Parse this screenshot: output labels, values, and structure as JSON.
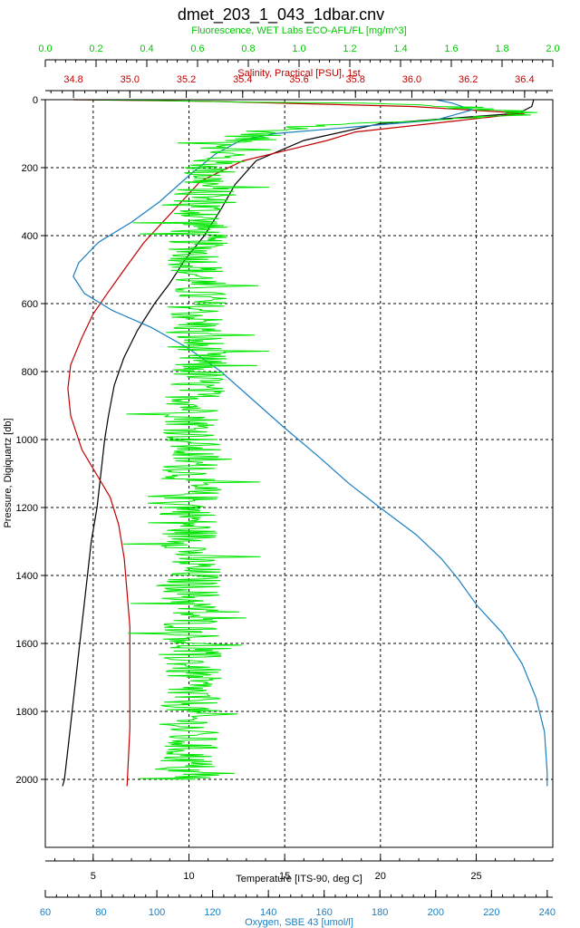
{
  "chart_data": {
    "type": "line",
    "title": "dmet_203_1_043_1dbar.cnv",
    "grid": true,
    "y_axis": {
      "label": "Pressure, Digiquartz [db]",
      "range": [
        2200,
        0
      ],
      "ticks": [
        0,
        200,
        400,
        600,
        800,
        1000,
        1200,
        1400,
        1600,
        1800,
        2000
      ]
    },
    "x_axes": [
      {
        "id": "fluorescence",
        "position": "top",
        "label": "Fluorescence, WET Labs ECO-AFL/FL [mg/m^3]",
        "color": "#00c800",
        "range": [
          0.0,
          2.0
        ],
        "ticks": [
          "0.0",
          "0.2",
          "0.4",
          "0.6",
          "0.8",
          "1.0",
          "1.2",
          "1.4",
          "1.6",
          "1.8",
          "2.0"
        ]
      },
      {
        "id": "salinity",
        "position": "top",
        "label": "Salinity, Practical [PSU], 1st",
        "color": "#c00000",
        "range": [
          34.7,
          36.5
        ],
        "ticks": [
          "34.8",
          "35.0",
          "35.2",
          "35.4",
          "35.6",
          "35.8",
          "36.0",
          "36.2",
          "36.4"
        ]
      },
      {
        "id": "temperature",
        "position": "bottom",
        "label": "Temperature [ITS-90, deg C]",
        "color": "#000000",
        "range": [
          2.5,
          29.0
        ],
        "ticks": [
          "5",
          "10",
          "15",
          "20",
          "25"
        ]
      },
      {
        "id": "oxygen",
        "position": "bottom",
        "label": "Oxygen, SBE 43 [umol/l]",
        "color": "#1a7fc0",
        "range": [
          60,
          242
        ],
        "ticks": [
          "60",
          "80",
          "100",
          "120",
          "140",
          "160",
          "180",
          "200",
          "220",
          "240"
        ]
      }
    ],
    "series": [
      {
        "name": "Temperature [ITS-90, deg C]",
        "axis": "temperature",
        "color": "#000000",
        "points": [
          [
            28.0,
            0
          ],
          [
            27.9,
            20
          ],
          [
            27.2,
            40
          ],
          [
            20.0,
            70
          ],
          [
            16.0,
            120
          ],
          [
            13.5,
            180
          ],
          [
            12.4,
            250
          ],
          [
            11.7,
            320
          ],
          [
            10.8,
            400
          ],
          [
            9.8,
            470
          ],
          [
            9.0,
            540
          ],
          [
            8.2,
            600
          ],
          [
            7.3,
            680
          ],
          [
            6.6,
            760
          ],
          [
            6.1,
            840
          ],
          [
            5.8,
            930
          ],
          [
            5.6,
            1000
          ],
          [
            5.4,
            1100
          ],
          [
            5.2,
            1200
          ],
          [
            4.9,
            1300
          ],
          [
            4.7,
            1400
          ],
          [
            4.5,
            1500
          ],
          [
            4.3,
            1600
          ],
          [
            4.1,
            1700
          ],
          [
            3.9,
            1800
          ],
          [
            3.7,
            1900
          ],
          [
            3.5,
            2000
          ],
          [
            3.4,
            2020
          ]
        ]
      },
      {
        "name": "Salinity, Practical [PSU], 1st",
        "axis": "salinity",
        "color": "#c00000",
        "points": [
          [
            34.8,
            0
          ],
          [
            35.3,
            5
          ],
          [
            36.0,
            20
          ],
          [
            36.4,
            40
          ],
          [
            35.8,
            95
          ],
          [
            35.7,
            120
          ],
          [
            35.55,
            150
          ],
          [
            35.4,
            180
          ],
          [
            35.25,
            240
          ],
          [
            35.15,
            330
          ],
          [
            35.05,
            420
          ],
          [
            34.98,
            500
          ],
          [
            34.92,
            570
          ],
          [
            34.87,
            630
          ],
          [
            34.83,
            700
          ],
          [
            34.79,
            780
          ],
          [
            34.78,
            850
          ],
          [
            34.79,
            930
          ],
          [
            34.83,
            1030
          ],
          [
            34.88,
            1100
          ],
          [
            34.93,
            1170
          ],
          [
            34.96,
            1250
          ],
          [
            34.98,
            1350
          ],
          [
            34.99,
            1450
          ],
          [
            35.0,
            1550
          ],
          [
            35.0,
            1700
          ],
          [
            35.0,
            1850
          ],
          [
            34.99,
            2020
          ]
        ]
      },
      {
        "name": "Oxygen, SBE 43 [umol/l]",
        "axis": "oxygen",
        "color": "#1a7fc0",
        "points": [
          [
            200,
            0
          ],
          [
            206,
            10
          ],
          [
            213,
            30
          ],
          [
            200,
            60
          ],
          [
            142,
            100
          ],
          [
            130,
            120
          ],
          [
            121,
            160
          ],
          [
            112,
            220
          ],
          [
            101,
            300
          ],
          [
            91,
            360
          ],
          [
            79,
            420
          ],
          [
            72,
            480
          ],
          [
            70,
            520
          ],
          [
            74,
            570
          ],
          [
            84,
            620
          ],
          [
            98,
            670
          ],
          [
            111,
            730
          ],
          [
            123,
            800
          ],
          [
            134,
            880
          ],
          [
            145,
            960
          ],
          [
            158,
            1050
          ],
          [
            169,
            1130
          ],
          [
            180,
            1200
          ],
          [
            193,
            1280
          ],
          [
            202,
            1350
          ],
          [
            208,
            1410
          ],
          [
            215,
            1490
          ],
          [
            224,
            1570
          ],
          [
            231,
            1660
          ],
          [
            236,
            1760
          ],
          [
            239,
            1860
          ],
          [
            240,
            1980
          ],
          [
            240,
            2020
          ]
        ]
      },
      {
        "name": "Fluorescence, WET Labs ECO-AFL/FL [mg/m^3]",
        "axis": "fluorescence",
        "color": "#00e600",
        "points": [
          [
            0.1,
            0
          ],
          [
            0.6,
            5
          ],
          [
            1.2,
            10
          ],
          [
            1.6,
            20
          ],
          [
            1.9,
            40
          ],
          [
            1.5,
            60
          ],
          [
            1.0,
            80
          ],
          [
            0.85,
            100
          ],
          [
            0.75,
            130
          ],
          [
            0.7,
            160
          ],
          [
            0.65,
            200
          ],
          [
            0.62,
            300
          ],
          [
            0.6,
            400
          ],
          [
            0.6,
            600
          ],
          [
            0.6,
            800
          ],
          [
            0.58,
            1000
          ],
          [
            0.57,
            1200
          ],
          [
            0.58,
            1400
          ],
          [
            0.58,
            1600
          ],
          [
            0.57,
            1800
          ],
          [
            0.56,
            2000
          ]
        ],
        "noise_amplitude": 0.12
      }
    ]
  }
}
